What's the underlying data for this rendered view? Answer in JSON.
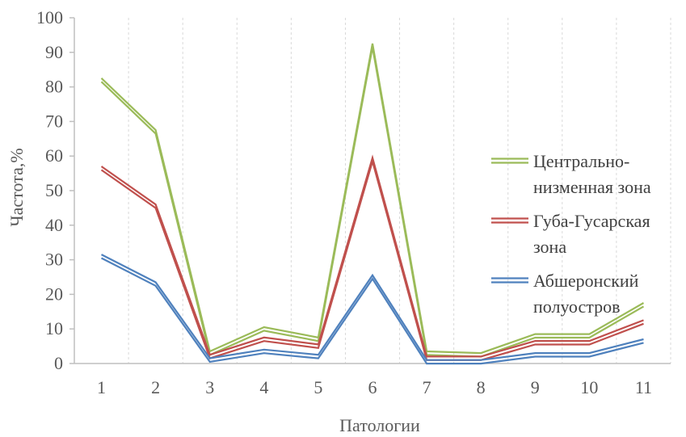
{
  "chart_data": {
    "type": "line",
    "x": [
      "1",
      "2",
      "3",
      "4",
      "5",
      "6",
      "7",
      "8",
      "9",
      "10",
      "11"
    ],
    "xlabel": "Патологии",
    "ylabel": "Частота,%",
    "ylim": [
      0,
      100
    ],
    "yticks": [
      "0",
      "10",
      "20",
      "30",
      "40",
      "50",
      "60",
      "70",
      "80",
      "90",
      "100"
    ],
    "grid": "vertical-dashed",
    "legend_position": "right",
    "series": [
      {
        "name_lines": [
          "Центрально-",
          "низменная зона"
        ],
        "color": "#9bbb59",
        "values": [
          82,
          67,
          3,
          10,
          7,
          92,
          3,
          2.5,
          8,
          8,
          17
        ]
      },
      {
        "name_lines": [
          "Губа-Гусарская",
          "зона"
        ],
        "color": "#c0504d",
        "values": [
          56.5,
          45.5,
          2,
          7,
          5,
          59,
          1.5,
          1.5,
          6,
          6,
          12
        ]
      },
      {
        "name_lines": [
          "Абшеронский",
          "полуостров"
        ],
        "color": "#4f81bd",
        "values": [
          31,
          23,
          1,
          3.5,
          2,
          25,
          0.5,
          0.5,
          2.5,
          2.5,
          6.5
        ]
      }
    ]
  }
}
